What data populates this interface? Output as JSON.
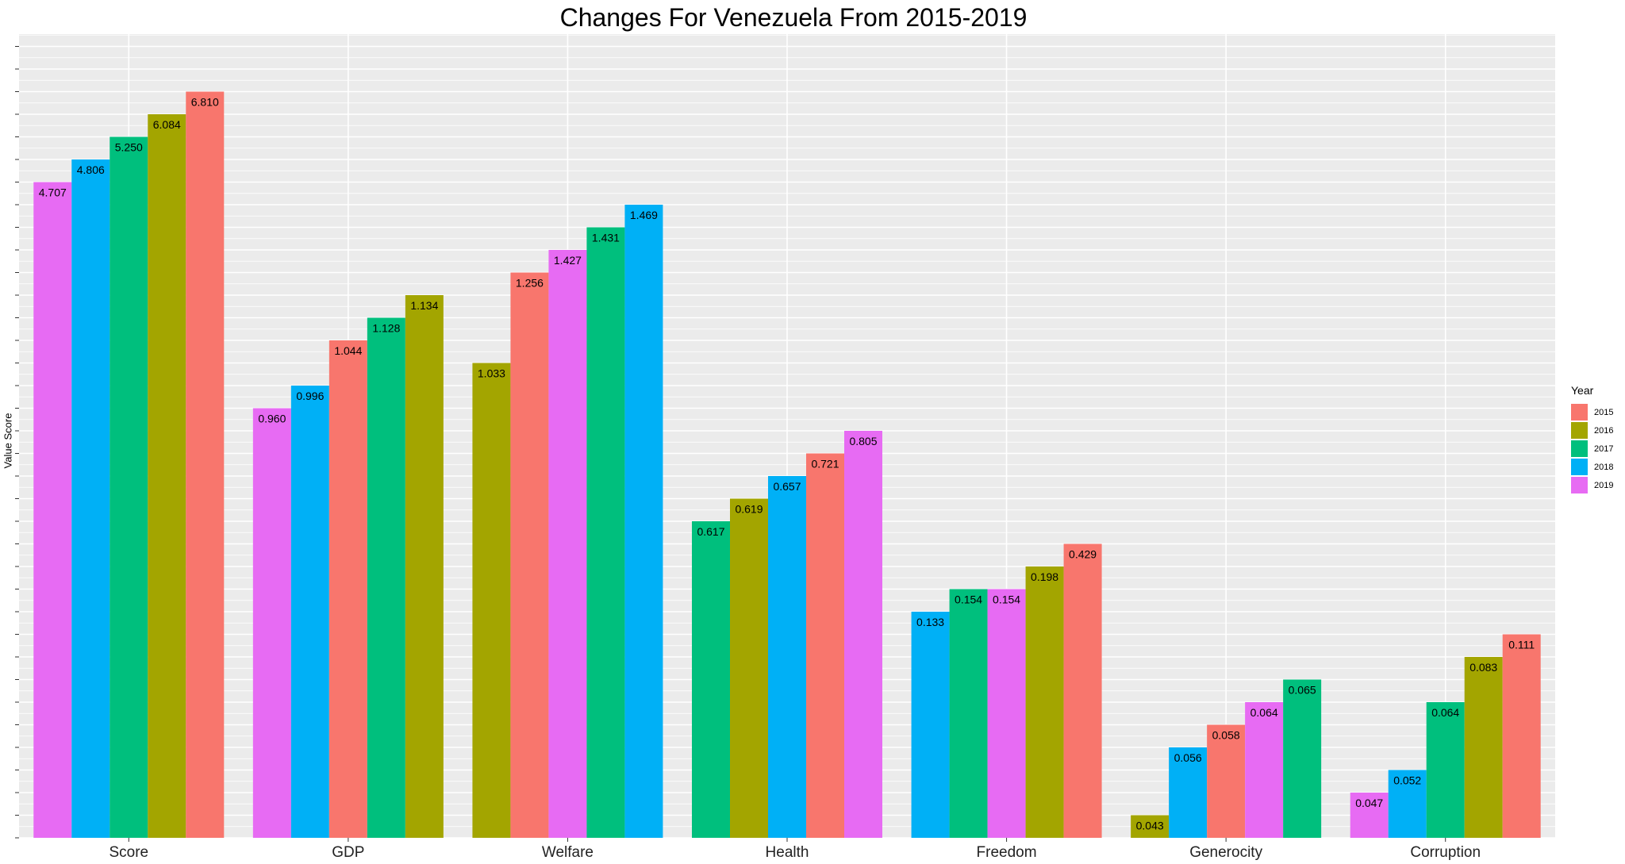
{
  "chart_data": {
    "type": "bar",
    "title": "Changes For Venezuela From 2015-2019",
    "xlabel": "",
    "ylabel": "Value Score",
    "ylim": [
      0,
      35
    ],
    "grid": true,
    "legend_position": "right",
    "legend_title": "Year",
    "categories": [
      "Score",
      "GDP",
      "Welfare",
      "Health",
      "Freedom",
      "Generocity",
      "Corruption"
    ],
    "series": [
      {
        "name": "2015",
        "color": "#F8766D"
      },
      {
        "name": "2016",
        "color": "#A3A500"
      },
      {
        "name": "2017",
        "color": "#00BF7D"
      },
      {
        "name": "2018",
        "color": "#00B0F6"
      },
      {
        "name": "2019",
        "color": "#E76BF3"
      }
    ],
    "bars": [
      [
        {
          "year": "2019",
          "value": 4.707
        },
        {
          "year": "2018",
          "value": 4.806
        },
        {
          "year": "2017",
          "value": 5.25
        },
        {
          "year": "2016",
          "value": 6.084
        },
        {
          "year": "2015",
          "value": 6.81
        }
      ],
      [
        {
          "year": "2019",
          "value": 0.96
        },
        {
          "year": "2018",
          "value": 0.996
        },
        {
          "year": "2015",
          "value": 1.044
        },
        {
          "year": "2017",
          "value": 1.128
        },
        {
          "year": "2016",
          "value": 1.134
        }
      ],
      [
        {
          "year": "2016",
          "value": 1.033
        },
        {
          "year": "2015",
          "value": 1.256
        },
        {
          "year": "2019",
          "value": 1.427
        },
        {
          "year": "2017",
          "value": 1.431
        },
        {
          "year": "2018",
          "value": 1.469
        }
      ],
      [
        {
          "year": "2017",
          "value": 0.617
        },
        {
          "year": "2016",
          "value": 0.619
        },
        {
          "year": "2018",
          "value": 0.657
        },
        {
          "year": "2015",
          "value": 0.721
        },
        {
          "year": "2019",
          "value": 0.805
        }
      ],
      [
        {
          "year": "2018",
          "value": 0.133
        },
        {
          "year": "2017",
          "value": 0.154
        },
        {
          "year": "2019",
          "value": 0.154
        },
        {
          "year": "2016",
          "value": 0.198
        },
        {
          "year": "2015",
          "value": 0.429
        }
      ],
      [
        {
          "year": "2016",
          "value": 0.043
        },
        {
          "year": "2018",
          "value": 0.056
        },
        {
          "year": "2015",
          "value": 0.058
        },
        {
          "year": "2019",
          "value": 0.064
        },
        {
          "year": "2017",
          "value": 0.065
        }
      ],
      [
        {
          "year": "2019",
          "value": 0.047
        },
        {
          "year": "2018",
          "value": 0.052
        },
        {
          "year": "2017",
          "value": 0.064
        },
        {
          "year": "2016",
          "value": 0.083
        },
        {
          "year": "2015",
          "value": 0.111
        }
      ]
    ]
  }
}
